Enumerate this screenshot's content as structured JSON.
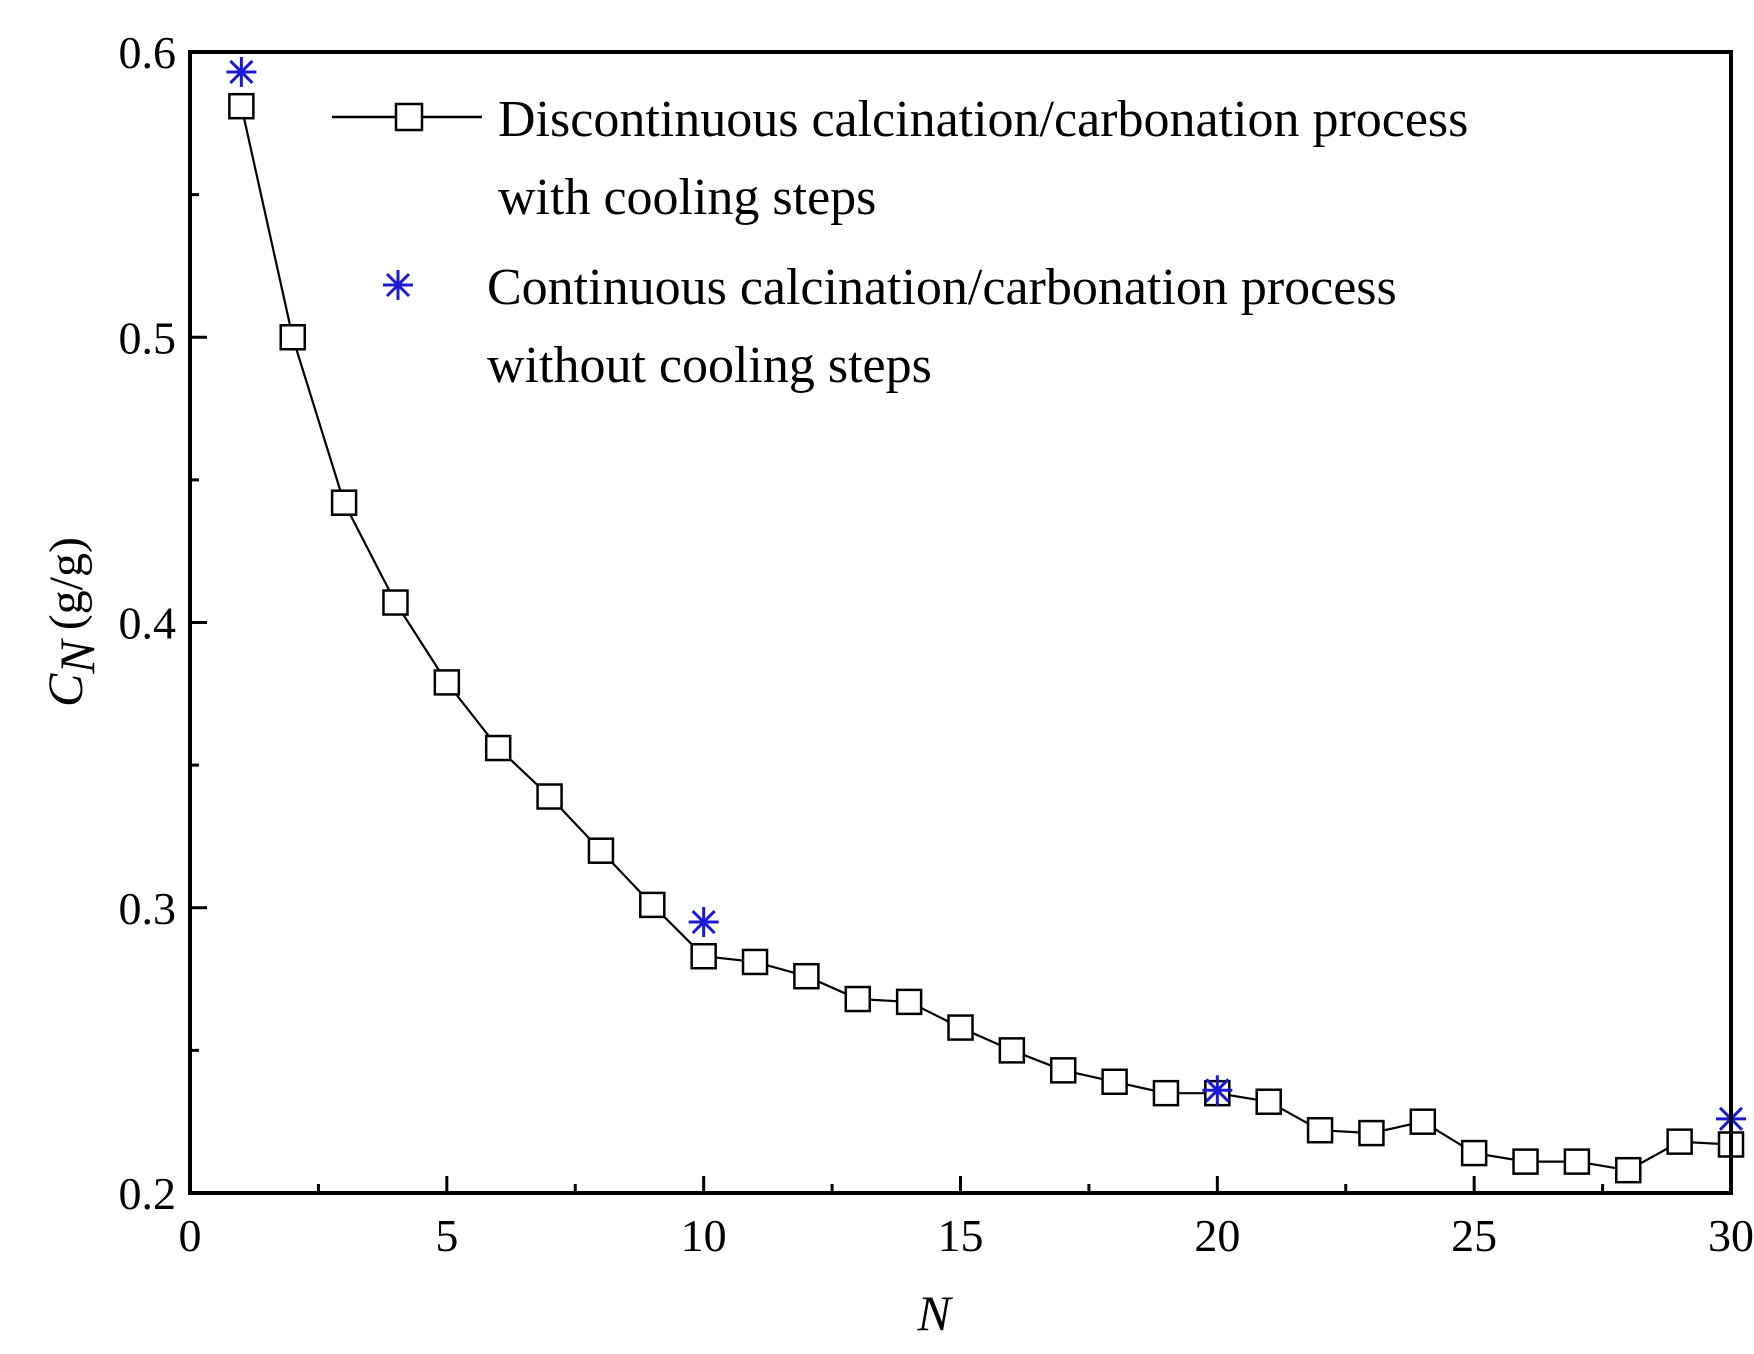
{
  "chart_data": {
    "type": "line",
    "title": "",
    "xlabel": "N",
    "ylabel_symbol": "C",
    "ylabel_subscript": "N",
    "ylabel_unit": "(g/g)",
    "xlim": [
      0,
      30
    ],
    "ylim": [
      0.2,
      0.6
    ],
    "x_ticks": [
      0,
      5,
      10,
      15,
      20,
      25,
      30
    ],
    "x_tick_labels": [
      "0",
      "5",
      "10",
      "15",
      "20",
      "25",
      "30"
    ],
    "y_ticks": [
      0.2,
      0.3,
      0.4,
      0.5,
      0.6
    ],
    "y_tick_labels": [
      "0.2",
      "0.3",
      "0.4",
      "0.5",
      "0.6"
    ],
    "grid": false,
    "legend_position": "top-right",
    "series": [
      {
        "name": "Discontinuous calcination/carbonation process with cooling steps",
        "legend_lines": [
          "Discontinuous calcination/carbonation process",
          "with cooling steps"
        ],
        "marker": "open-square",
        "line": true,
        "color": "#000000",
        "x": [
          1,
          2,
          3,
          4,
          5,
          6,
          7,
          8,
          9,
          10,
          11,
          12,
          13,
          14,
          15,
          16,
          17,
          18,
          19,
          20,
          21,
          22,
          23,
          24,
          25,
          26,
          27,
          28,
          29,
          30
        ],
        "y": [
          0.581,
          0.5,
          0.442,
          0.407,
          0.379,
          0.356,
          0.339,
          0.32,
          0.301,
          0.283,
          0.281,
          0.276,
          0.268,
          0.267,
          0.258,
          0.25,
          0.243,
          0.239,
          0.235,
          0.235,
          0.232,
          0.222,
          0.221,
          0.225,
          0.214,
          0.211,
          0.211,
          0.208,
          0.218,
          0.217
        ]
      },
      {
        "name": "Continuous calcination/carbonation process without cooling steps",
        "legend_lines": [
          "Continuous calcination/carbonation process",
          "without cooling steps"
        ],
        "marker": "asterisk",
        "line": false,
        "color": "#1a1ad6",
        "x": [
          1,
          10,
          20,
          30
        ],
        "y": [
          0.593,
          0.295,
          0.236,
          0.226
        ]
      }
    ]
  }
}
